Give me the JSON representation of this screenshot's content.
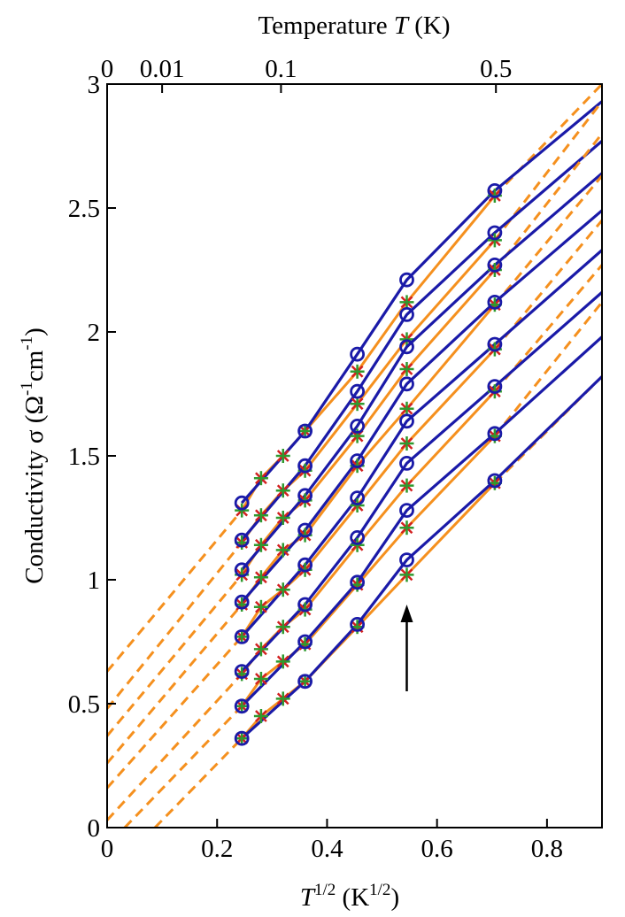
{
  "chart_data": {
    "type": "line",
    "xlabel": {
      "main": "T",
      "sup": "1/2",
      "unit": "(K",
      "unit_sup": "1/2",
      "unit_close": ")"
    },
    "ylabel": {
      "text": "Conductivity σ  (Ω",
      "sup1": "-1",
      "mid": "cm",
      "sup2": "-1",
      "close": ")"
    },
    "top_label": "Temperature",
    "top_label_var": "T",
    "top_label_unit": "(K)",
    "xlim": [
      0,
      0.9
    ],
    "ylim": [
      0,
      3
    ],
    "x_ticks": [
      {
        "v": 0,
        "label": "0"
      },
      {
        "v": 0.2,
        "label": "0.2"
      },
      {
        "v": 0.4,
        "label": "0.4"
      },
      {
        "v": 0.6,
        "label": "0.6"
      },
      {
        "v": 0.8,
        "label": "0.8"
      }
    ],
    "y_ticks": [
      {
        "v": 0,
        "label": "0"
      },
      {
        "v": 0.5,
        "label": "0.5"
      },
      {
        "v": 1,
        "label": "1"
      },
      {
        "v": 1.5,
        "label": "1.5"
      },
      {
        "v": 2,
        "label": "2"
      },
      {
        "v": 2.5,
        "label": "2.5"
      },
      {
        "v": 3,
        "label": "3"
      }
    ],
    "top_ticks": [
      {
        "t": 0,
        "label": "0"
      },
      {
        "t": 0.01,
        "label": "0.01"
      },
      {
        "t": 0.1,
        "label": "0.1"
      },
      {
        "t": 0.5,
        "label": "0.5"
      }
    ],
    "colors": {
      "blue": "#1a1aa8",
      "orange": "#f5901e",
      "green": "#2e9a2e",
      "red": "#d22020",
      "axis": "#000000"
    },
    "x_circles": [
      0.245,
      0.36,
      0.455,
      0.545,
      0.705
    ],
    "x_stars": [
      0.245,
      0.28,
      0.32,
      0.36,
      0.455,
      0.545,
      0.705
    ],
    "series": [
      {
        "blue": [
          1.31,
          1.6,
          1.91,
          2.21,
          2.57
        ],
        "orange": [
          1.28,
          1.6,
          1.84,
          2.12,
          2.55
        ],
        "stars": [
          1.28,
          1.41,
          1.5,
          1.6,
          1.84,
          2.12,
          2.55
        ],
        "blue_end": 2.93,
        "dash_y0": 0.63,
        "dash_end": 3.0
      },
      {
        "blue": [
          1.16,
          1.46,
          1.76,
          2.07,
          2.4
        ],
        "orange": [
          1.15,
          1.44,
          1.71,
          1.97,
          2.37
        ],
        "stars": [
          1.15,
          1.26,
          1.36,
          1.44,
          1.71,
          1.97,
          2.37
        ],
        "blue_end": 2.77,
        "dash_y0": 0.48,
        "dash_end": 2.93
      },
      {
        "blue": [
          1.04,
          1.34,
          1.62,
          1.94,
          2.27
        ],
        "orange": [
          1.02,
          1.32,
          1.58,
          1.85,
          2.25
        ],
        "stars": [
          1.02,
          1.14,
          1.25,
          1.32,
          1.58,
          1.85,
          2.25
        ],
        "blue_end": 2.64,
        "dash_y0": 0.37,
        "dash_end": 2.8
      },
      {
        "blue": [
          0.91,
          1.2,
          1.48,
          1.79,
          2.12
        ],
        "orange": [
          0.9,
          1.18,
          1.46,
          1.69,
          2.11
        ],
        "stars": [
          0.9,
          1.01,
          1.12,
          1.18,
          1.46,
          1.69,
          2.11
        ],
        "blue_end": 2.49,
        "dash_y0": 0.26,
        "dash_end": 2.63
      },
      {
        "blue": [
          0.77,
          1.06,
          1.33,
          1.64,
          1.95
        ],
        "orange": [
          0.77,
          1.04,
          1.3,
          1.55,
          1.93
        ],
        "stars": [
          0.77,
          0.89,
          0.96,
          1.04,
          1.3,
          1.55,
          1.93
        ],
        "blue_end": 2.33,
        "dash_y0": 0.16,
        "dash_end": 2.45
      },
      {
        "blue": [
          0.63,
          0.9,
          1.17,
          1.47,
          1.78
        ],
        "orange": [
          0.62,
          0.88,
          1.14,
          1.38,
          1.76
        ],
        "stars": [
          0.62,
          0.72,
          0.81,
          0.88,
          1.14,
          1.38,
          1.76
        ],
        "blue_end": 2.16,
        "dash_y0": 0.03,
        "dash_end": 2.27
      },
      {
        "blue": [
          0.49,
          0.75,
          0.99,
          1.28,
          1.59
        ],
        "orange": [
          0.49,
          0.74,
          0.98,
          1.21,
          1.58
        ],
        "stars": [
          0.49,
          0.6,
          0.67,
          0.74,
          0.98,
          1.21,
          1.58
        ],
        "blue_end": 1.98,
        "dash_x0": 0.032,
        "dash_end": 2.12
      },
      {
        "blue": [
          0.36,
          0.59,
          0.82,
          1.08,
          1.4
        ],
        "orange": [
          0.36,
          0.59,
          0.81,
          1.02,
          1.39
        ],
        "stars": [
          0.36,
          0.45,
          0.52,
          0.59,
          0.81,
          1.02,
          1.39
        ],
        "blue_end": 1.82,
        "dash_x0": 0.087,
        "dash_end": 1.82
      }
    ],
    "arrow": {
      "x": 0.545,
      "y_from": 0.55,
      "y_to": 0.9
    }
  }
}
